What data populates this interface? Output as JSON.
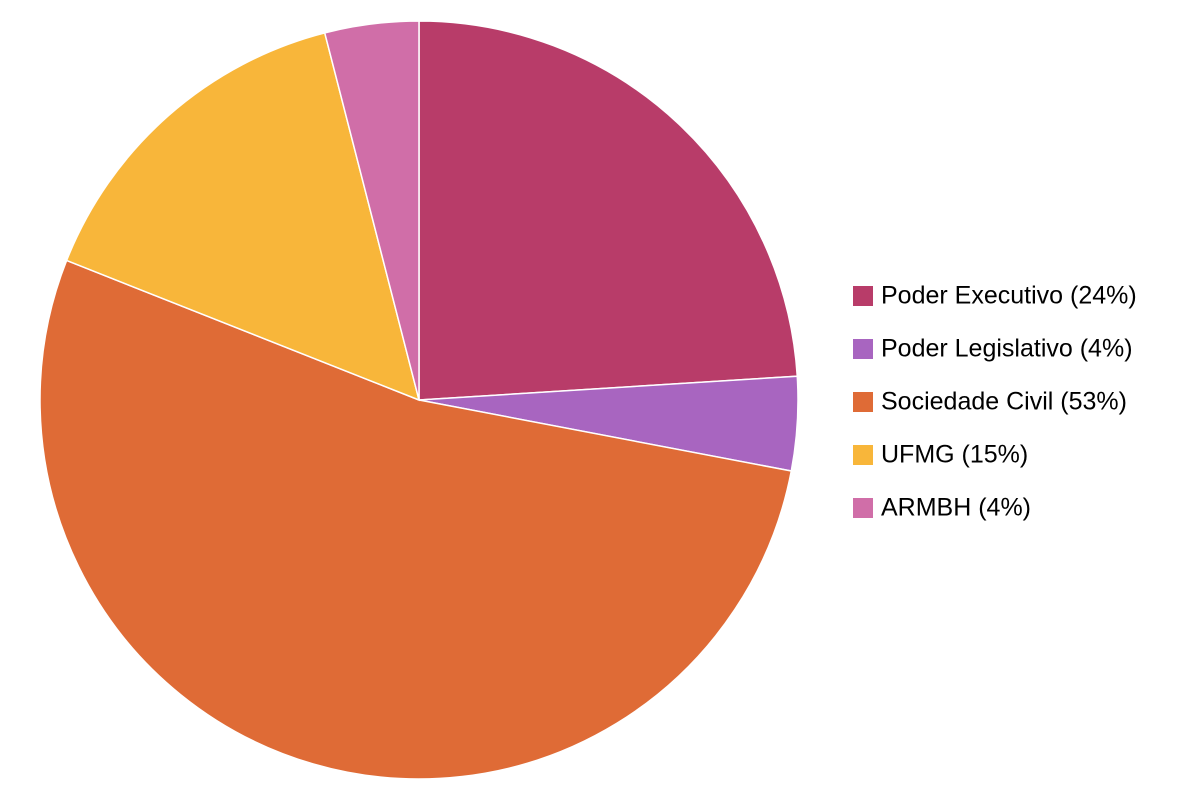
{
  "chart_data": {
    "type": "pie",
    "categories": [
      "Poder Executivo (24%)",
      "Poder Legislativo (4%)",
      "Sociedade Civil (53%)",
      "UFMG (15%)",
      "ARMBH (4%)"
    ],
    "values": [
      24,
      4,
      53,
      15,
      4
    ],
    "colors": [
      "#B83C69",
      "#A865C0",
      "#DF6B36",
      "#F8B63A",
      "#D06EA8"
    ],
    "legend": "right"
  }
}
